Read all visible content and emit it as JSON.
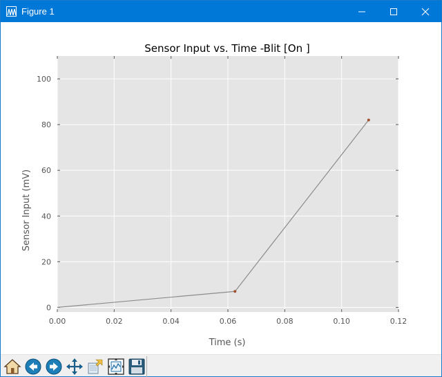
{
  "window": {
    "title": "Figure 1",
    "minimize_icon": "minimize-icon",
    "maximize_icon": "maximize-icon",
    "close_icon": "close-icon"
  },
  "toolbar": {
    "buttons": [
      {
        "name": "home-button",
        "icon": "home-icon"
      },
      {
        "name": "back-button",
        "icon": "back-arrow-icon"
      },
      {
        "name": "forward-button",
        "icon": "forward-arrow-icon"
      },
      {
        "name": "pan-button",
        "icon": "pan-move-icon"
      },
      {
        "name": "zoom-button",
        "icon": "zoom-rect-icon"
      },
      {
        "name": "subplots-button",
        "icon": "configure-subplots-icon"
      },
      {
        "name": "save-button",
        "icon": "save-disk-icon"
      }
    ]
  },
  "chart_data": {
    "type": "line",
    "title": "Sensor Input vs. Time -Blit [On ]",
    "xlabel": "Time (s)",
    "ylabel": "Sensor Input (mV)",
    "xlim": [
      0.0,
      0.12
    ],
    "ylim": [
      -2,
      110
    ],
    "xticks": [
      0.0,
      0.02,
      0.04,
      0.06,
      0.08,
      0.1,
      0.12
    ],
    "xtick_labels": [
      "0.00",
      "0.02",
      "0.04",
      "0.06",
      "0.08",
      "0.10",
      "0.12"
    ],
    "yticks": [
      0,
      20,
      40,
      60,
      80,
      100
    ],
    "ytick_labels": [
      "0",
      "20",
      "40",
      "60",
      "80",
      "100"
    ],
    "grid": true,
    "colors": {
      "axes_bg": "#e5e5e5",
      "grid": "#ffffff",
      "line": "#8c8c8c",
      "marker": "#a0522d",
      "text": "#555555",
      "title_bar": "#0078d7"
    },
    "series": [
      {
        "x": [
          0.0,
          0.0625,
          0.1095
        ],
        "y": [
          0.0,
          7.0,
          82.0
        ],
        "markers": [
          false,
          true,
          true
        ]
      }
    ]
  }
}
